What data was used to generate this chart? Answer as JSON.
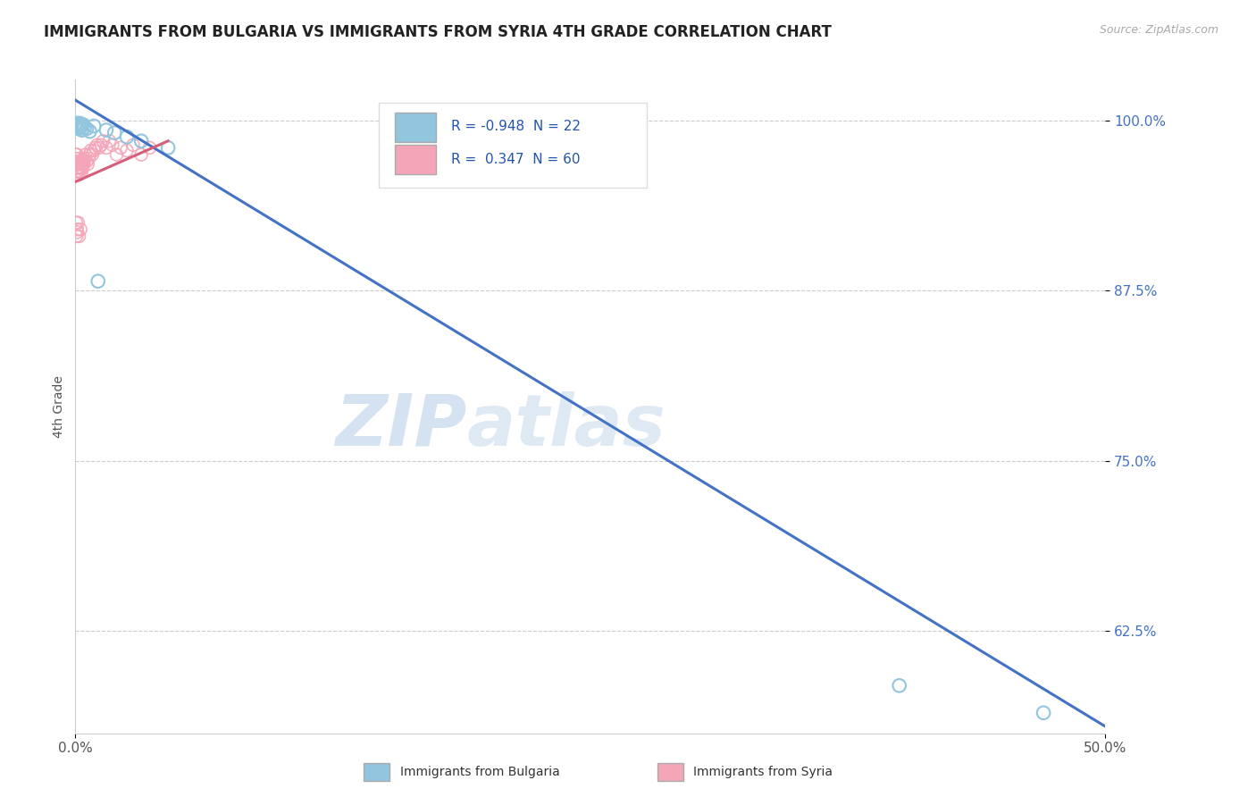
{
  "title": "IMMIGRANTS FROM BULGARIA VS IMMIGRANTS FROM SYRIA 4TH GRADE CORRELATION CHART",
  "source": "Source: ZipAtlas.com",
  "ylabel": "4th Grade",
  "yticks": [
    62.5,
    75.0,
    87.5,
    100.0
  ],
  "ytick_labels": [
    "62.5%",
    "75.0%",
    "87.5%",
    "100.0%"
  ],
  "xrange": [
    0.0,
    50.0
  ],
  "yrange": [
    55.0,
    103.0
  ],
  "watermark_zip": "ZIP",
  "watermark_atlas": "atlas",
  "legend_blue_r": "R = -0.948",
  "legend_blue_n": "N = 22",
  "legend_pink_r": "R =  0.347",
  "legend_pink_n": "N = 60",
  "blue_color": "#92c5de",
  "pink_color": "#f4a6b8",
  "blue_line_color": "#4472c4",
  "pink_line_color": "#d45f7a",
  "blue_scatter_x": [
    0.05,
    0.08,
    0.12,
    0.15,
    0.18,
    0.22,
    0.25,
    0.28,
    0.32,
    0.38,
    0.45,
    0.55,
    0.7,
    0.9,
    1.1,
    1.5,
    1.9,
    2.5,
    3.2,
    4.5,
    40.0,
    47.0
  ],
  "blue_scatter_y": [
    99.8,
    99.5,
    99.6,
    99.7,
    99.4,
    99.8,
    99.5,
    99.6,
    99.3,
    99.7,
    99.5,
    99.4,
    99.2,
    99.6,
    88.2,
    99.3,
    99.1,
    98.8,
    98.5,
    98.0,
    58.5,
    56.5
  ],
  "pink_scatter_x": [
    0.02,
    0.03,
    0.04,
    0.05,
    0.06,
    0.07,
    0.08,
    0.09,
    0.1,
    0.11,
    0.12,
    0.13,
    0.14,
    0.15,
    0.16,
    0.17,
    0.18,
    0.19,
    0.2,
    0.21,
    0.22,
    0.23,
    0.25,
    0.27,
    0.29,
    0.31,
    0.33,
    0.36,
    0.39,
    0.42,
    0.46,
    0.5,
    0.55,
    0.6,
    0.65,
    0.7,
    0.75,
    0.82,
    0.9,
    0.98,
    1.05,
    1.15,
    1.25,
    1.35,
    1.5,
    1.65,
    1.8,
    2.0,
    2.2,
    2.5,
    2.8,
    3.2,
    3.6,
    0.04,
    0.06,
    0.08,
    0.1,
    0.13,
    0.18,
    0.25
  ],
  "pink_scatter_y": [
    97.5,
    96.8,
    97.2,
    96.5,
    97.0,
    96.3,
    97.5,
    96.8,
    96.2,
    97.0,
    96.5,
    97.2,
    96.8,
    96.0,
    96.5,
    97.0,
    96.3,
    96.8,
    96.5,
    97.0,
    96.5,
    96.8,
    97.0,
    96.5,
    96.2,
    96.8,
    97.0,
    96.5,
    96.8,
    97.0,
    97.2,
    97.5,
    97.0,
    96.8,
    97.2,
    97.5,
    97.8,
    97.5,
    97.8,
    98.0,
    98.2,
    98.0,
    98.2,
    98.5,
    98.0,
    98.5,
    98.2,
    97.5,
    98.0,
    97.8,
    98.2,
    97.5,
    98.0,
    92.5,
    91.5,
    92.0,
    91.8,
    92.5,
    91.5,
    92.0
  ],
  "blue_line_x": [
    0.0,
    50.0
  ],
  "blue_line_y": [
    101.5,
    55.5
  ],
  "pink_line_x": [
    0.0,
    4.5
  ],
  "pink_line_y": [
    95.5,
    98.5
  ]
}
